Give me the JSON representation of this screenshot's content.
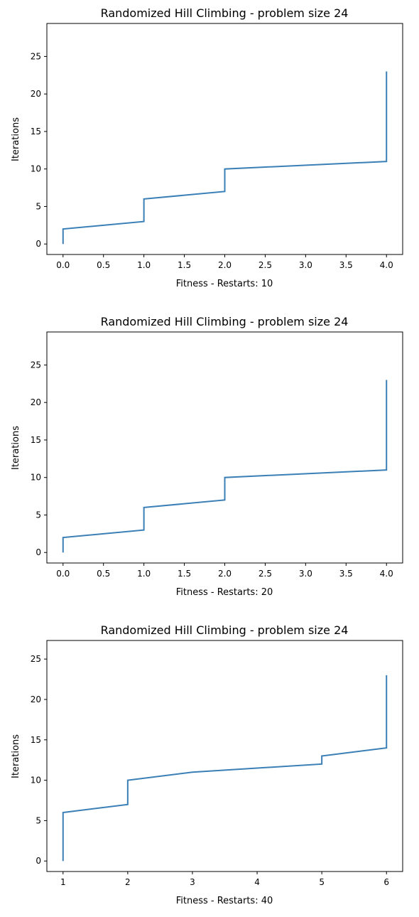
{
  "charts": [
    {
      "type": "line",
      "title": "Randomized Hill Climbing - problem size 24",
      "xlabel": "Fitness - Restarts: 10",
      "ylabel": "Iterations",
      "xlim": [
        -0.2,
        4.2
      ],
      "ylim": [
        -1.4,
        29.4
      ],
      "xticks": [
        0.0,
        0.5,
        1.0,
        1.5,
        2.0,
        2.5,
        3.0,
        3.5,
        4.0
      ],
      "xtick_labels": [
        "0.0",
        "0.5",
        "1.0",
        "1.5",
        "2.0",
        "2.5",
        "3.0",
        "3.5",
        "4.0"
      ],
      "yticks": [
        0,
        5,
        10,
        15,
        20,
        25
      ],
      "ytick_labels": [
        "0",
        "5",
        "10",
        "15",
        "20",
        "25"
      ],
      "grid": false,
      "legend": "none",
      "line_color": "#3a7fb6",
      "x": [
        0,
        0,
        0,
        1,
        1,
        1,
        1,
        2,
        2,
        2,
        2,
        4,
        4,
        4,
        4,
        4,
        4,
        4,
        4,
        4,
        4,
        4,
        4,
        4
      ],
      "y": [
        0,
        1,
        2,
        3,
        4,
        5,
        6,
        7,
        8,
        9,
        10,
        11,
        12,
        13,
        14,
        15,
        16,
        17,
        18,
        19,
        20,
        21,
        22,
        23
      ]
    },
    {
      "type": "line",
      "title": "Randomized Hill Climbing - problem size 24",
      "xlabel": "Fitness - Restarts: 20",
      "ylabel": "Iterations",
      "xlim": [
        -0.2,
        4.2
      ],
      "ylim": [
        -1.4,
        29.4
      ],
      "xticks": [
        0.0,
        0.5,
        1.0,
        1.5,
        2.0,
        2.5,
        3.0,
        3.5,
        4.0
      ],
      "xtick_labels": [
        "0.0",
        "0.5",
        "1.0",
        "1.5",
        "2.0",
        "2.5",
        "3.0",
        "3.5",
        "4.0"
      ],
      "yticks": [
        0,
        5,
        10,
        15,
        20,
        25
      ],
      "ytick_labels": [
        "0",
        "5",
        "10",
        "15",
        "20",
        "25"
      ],
      "grid": false,
      "legend": "none",
      "line_color": "#3a7fb6",
      "x": [
        0,
        0,
        0,
        1,
        1,
        1,
        1,
        2,
        2,
        2,
        2,
        4,
        4,
        4,
        4,
        4,
        4,
        4,
        4,
        4,
        4,
        4,
        4,
        4
      ],
      "y": [
        0,
        1,
        2,
        3,
        4,
        5,
        6,
        7,
        8,
        9,
        10,
        11,
        12,
        13,
        14,
        15,
        16,
        17,
        18,
        19,
        20,
        21,
        22,
        23
      ]
    },
    {
      "type": "line",
      "title": "Randomized Hill Climbing - problem size 24",
      "xlabel": "Fitness - Restarts: 40",
      "ylabel": "Iterations",
      "xlim": [
        0.75,
        6.25
      ],
      "ylim": [
        -1.3,
        27.3
      ],
      "xticks": [
        1,
        2,
        3,
        4,
        5,
        6
      ],
      "xtick_labels": [
        "1",
        "2",
        "3",
        "4",
        "5",
        "6"
      ],
      "yticks": [
        0,
        5,
        10,
        15,
        20,
        25
      ],
      "ytick_labels": [
        "0",
        "5",
        "10",
        "15",
        "20",
        "25"
      ],
      "grid": false,
      "legend": "none",
      "line_color": "#3a7fb6",
      "x": [
        1,
        1,
        1,
        1,
        1,
        1,
        1,
        2,
        2,
        2,
        2,
        3,
        5,
        5,
        6,
        6,
        6,
        6,
        6,
        6,
        6,
        6,
        6,
        6
      ],
      "y": [
        0,
        1,
        2,
        3,
        4,
        5,
        6,
        7,
        8,
        9,
        10,
        11,
        12,
        13,
        14,
        15,
        16,
        17,
        18,
        19,
        20,
        21,
        22,
        23
      ]
    }
  ]
}
